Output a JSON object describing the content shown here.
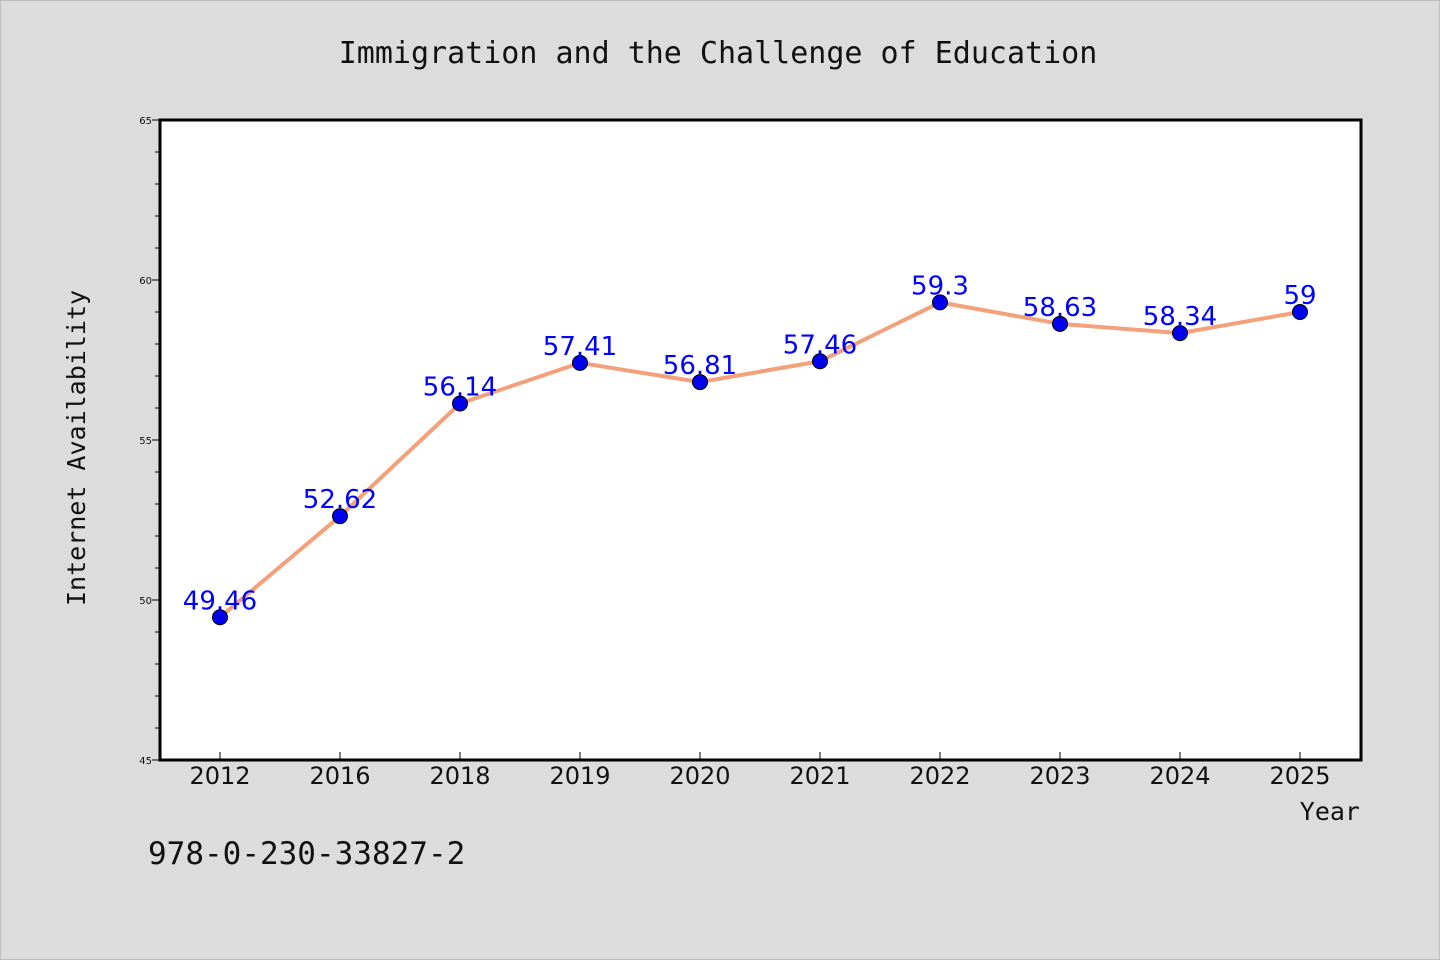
{
  "chart_data": {
    "type": "line",
    "title": "Immigration and the Challenge of Education",
    "xlabel": "Year",
    "ylabel": "Internet Availability",
    "categories": [
      "2012",
      "2016",
      "2018",
      "2019",
      "2020",
      "2021",
      "2022",
      "2023",
      "2024",
      "2025"
    ],
    "series": [
      {
        "values": [
          49.46,
          52.62,
          56.14,
          57.41,
          56.81,
          57.46,
          59.3,
          58.63,
          58.34,
          59
        ],
        "data_labels": [
          "49.46",
          "52.62",
          "56.14",
          "57.41",
          "56.81",
          "57.46",
          "59.3",
          "58.63",
          "58.34",
          "59"
        ],
        "line_color": "#f4a07a",
        "marker_color": "#0000ee"
      }
    ],
    "ylim": [
      45,
      65
    ],
    "yticks": [
      "45",
      "50",
      "55",
      "60",
      "65"
    ],
    "grid": false,
    "legend": "none",
    "label_color": "#0000ff"
  },
  "footer_text": "978-0-230-33827-2"
}
